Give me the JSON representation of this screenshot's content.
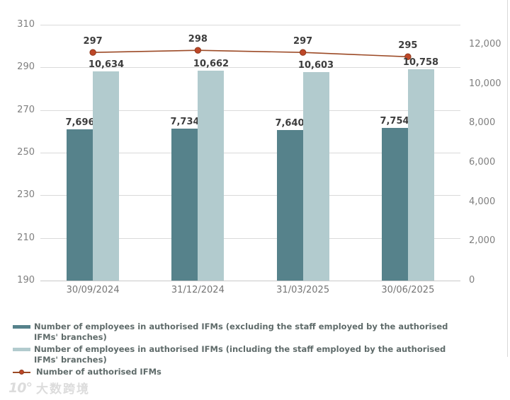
{
  "chart_data": {
    "type": "bar",
    "categories": [
      "30/09/2024",
      "31/12/2024",
      "31/03/2025",
      "30/06/2025"
    ],
    "series": [
      {
        "name": "Number of employees in authorised IFMs (excluding the staff employed by the authorised IFMs' branches)",
        "kind": "bar",
        "axis": "right",
        "color": "#56828b",
        "values": [
          7696,
          7734,
          7640,
          7754
        ],
        "labels": [
          "7,696",
          "7,734",
          "7,640",
          "7,754"
        ]
      },
      {
        "name": "Number of employees in authorised IFMs (including the staff employed by the authorised IFMs' branches)",
        "kind": "bar",
        "axis": "right",
        "color": "#b2cbce",
        "values": [
          10634,
          10662,
          10603,
          10758
        ],
        "labels": [
          "10,634",
          "10,662",
          "10,603",
          "10,758"
        ]
      },
      {
        "name": "Number of authorised IFMs",
        "kind": "line",
        "axis": "left",
        "color": "#9c4a26",
        "marker_color": "#be4728",
        "marker_edge": "#8e3a1c",
        "values": [
          297,
          298,
          297,
          295
        ],
        "labels": [
          "297",
          "298",
          "297",
          "295"
        ]
      }
    ],
    "left_axis": {
      "min": 190,
      "max": 310,
      "step": 20,
      "tick_labels": [
        "190",
        "210",
        "230",
        "250",
        "270",
        "290",
        "310"
      ]
    },
    "right_axis": {
      "min": 0,
      "max": 12000,
      "step": 2000,
      "tick_labels": [
        "0",
        "2,000",
        "4,000",
        "6,000",
        "8,000",
        "10,000",
        "12,000"
      ]
    },
    "title": "",
    "xlabel": "",
    "ylabel": "",
    "grid": true,
    "legend_position": "bottom"
  },
  "legend": {
    "items": [
      {
        "type": "bar",
        "color": "#56828b",
        "label": "Number of employees in authorised IFMs (excluding the staff employed by the authorised IFMs' branches)"
      },
      {
        "type": "bar",
        "color": "#b2cbce",
        "label": "Number of employees in authorised IFMs (including the staff employed by the authorised IFMs' branches)"
      },
      {
        "type": "line",
        "color": "#9c4a26",
        "label": "Number of authorised IFMs"
      }
    ]
  },
  "watermark": {
    "logo": "10°",
    "text": "大数跨境"
  },
  "colors": {
    "bar_dark": "#56828b",
    "bar_light": "#b2cbce",
    "line": "#9c4a26",
    "marker": "#be4728",
    "gridline": "#dadada",
    "data_label": "#3d3d3d",
    "axis_label": "#7f7f7f",
    "legend_text": "#5f6b6a"
  }
}
